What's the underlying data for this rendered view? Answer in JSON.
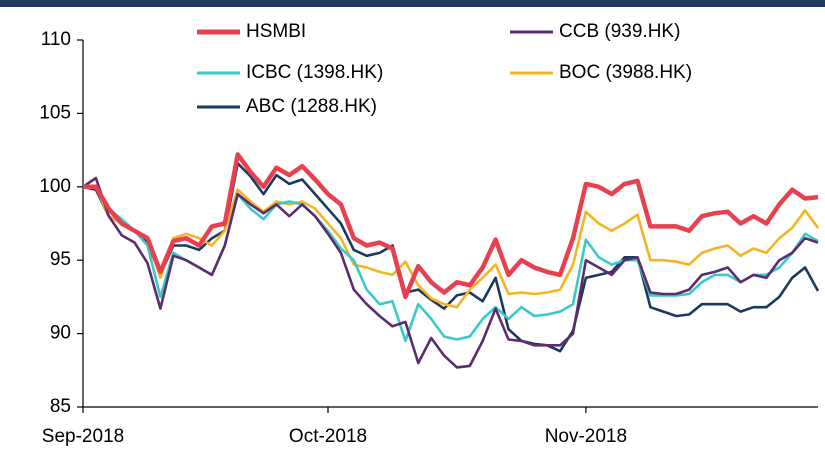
{
  "chart_data": {
    "type": "line",
    "categories": [
      "Sep-2018",
      null,
      null,
      null,
      null,
      null,
      null,
      null,
      null,
      null,
      null,
      null,
      null,
      null,
      null,
      null,
      null,
      null,
      null,
      "Oct-2018",
      null,
      null,
      null,
      null,
      null,
      null,
      null,
      null,
      null,
      null,
      null,
      null,
      null,
      null,
      null,
      null,
      null,
      null,
      null,
      "Nov-2018",
      null,
      null,
      null,
      null,
      null,
      null,
      null,
      null,
      null,
      null,
      null,
      null,
      null,
      null,
      null,
      null,
      null,
      null
    ],
    "ylim": [
      85,
      110
    ],
    "yticks": [
      85,
      90,
      95,
      100,
      105,
      110
    ],
    "series": [
      {
        "name": "HSMBI",
        "color": "#e8404f",
        "values": [
          100,
          100,
          98.5,
          97.5,
          97,
          96.5,
          94.2,
          96.3,
          96.5,
          96,
          97.3,
          97.5,
          102.2,
          101,
          100,
          101.3,
          100.8,
          101.4,
          100.5,
          99.5,
          98.8,
          96.5,
          96,
          96.2,
          95.8,
          92.5,
          94.6,
          93.5,
          92.8,
          93.5,
          93.3,
          94.5,
          96.4,
          94,
          95,
          94.5,
          94.2,
          94,
          96.5,
          100.2,
          100,
          99.5,
          100.2,
          100.4,
          97.3,
          97.3,
          97.3,
          97,
          98,
          98.2,
          98.3,
          97.5,
          98,
          97.5,
          98.8,
          99.8,
          99.2,
          99.3
        ]
      },
      {
        "name": "CCB (939.HK)",
        "color": "#5b2d6e",
        "values": [
          100,
          100.6,
          98,
          96.7,
          96.2,
          94.8,
          91.7,
          95.3,
          95,
          94.5,
          94,
          96,
          99.5,
          98.8,
          98.2,
          98.8,
          98,
          98.8,
          98,
          96.8,
          95.5,
          93,
          92,
          91.2,
          90.5,
          90.8,
          88,
          89.7,
          88.5,
          87.7,
          87.8,
          89.5,
          91.7,
          89.6,
          89.5,
          89.2,
          89.2,
          89.2,
          90,
          95,
          94.5,
          94,
          95,
          95.2,
          92.8,
          92.7,
          92.7,
          93,
          94,
          94.2,
          94.5,
          93.5,
          94,
          93.8,
          95,
          95.5,
          96.5,
          96.2
        ]
      },
      {
        "name": "ICBC (1398.HK)",
        "color": "#3cc8c8",
        "values": [
          100,
          100,
          98.5,
          97.8,
          97,
          96,
          92.5,
          95.5,
          95,
          94.5,
          94,
          96,
          99.5,
          98.5,
          97.8,
          98.8,
          99,
          98.8,
          98,
          97,
          95.8,
          95,
          93,
          92,
          92.2,
          89.5,
          92,
          91,
          89.8,
          89.6,
          89.8,
          91,
          91.8,
          91,
          91.8,
          91.2,
          91.3,
          91.5,
          92,
          96.4,
          95.2,
          94.7,
          95,
          95,
          92.6,
          92.6,
          92.6,
          92.7,
          93.5,
          94,
          94,
          93.5,
          94,
          94,
          94.5,
          95.5,
          96.8,
          96.3
        ]
      },
      {
        "name": "BOC (3988.HK)",
        "color": "#f6b425",
        "values": [
          100,
          100,
          98,
          97.5,
          97,
          96.5,
          93.8,
          96.5,
          96.8,
          96.5,
          96,
          97,
          99.8,
          99,
          98.3,
          99,
          98.8,
          99,
          98.5,
          97.5,
          96.5,
          94.7,
          94.5,
          94.2,
          94,
          94.9,
          93.3,
          92.4,
          92,
          91.8,
          93,
          93.8,
          94.7,
          92.7,
          92.8,
          92.7,
          92.8,
          93,
          94.7,
          98.3,
          97.5,
          97,
          97.5,
          98.1,
          95,
          95,
          94.9,
          94.7,
          95.5,
          95.8,
          96,
          95.3,
          95.8,
          95.5,
          96.5,
          97.2,
          98.4,
          97.2
        ]
      },
      {
        "name": "ABC (1288.HK)",
        "color": "#1b3a5c",
        "values": [
          100,
          99.8,
          98,
          97.5,
          97,
          96.2,
          94,
          96,
          96,
          95.7,
          96.5,
          97,
          101.6,
          100.7,
          99.5,
          100.8,
          100.2,
          100.5,
          99.5,
          98.5,
          97.5,
          95.7,
          95.3,
          95.5,
          96,
          92.8,
          93,
          92.3,
          91.7,
          92.6,
          92.8,
          92.2,
          93.8,
          90.3,
          89.5,
          89.3,
          89.2,
          88.8,
          90.2,
          93.8,
          94,
          94.2,
          95.2,
          95.2,
          91.8,
          91.5,
          91.2,
          91.3,
          92,
          92,
          92,
          91.5,
          91.8,
          91.8,
          92.5,
          93.8,
          94.5,
          92.9
        ]
      }
    ]
  }
}
